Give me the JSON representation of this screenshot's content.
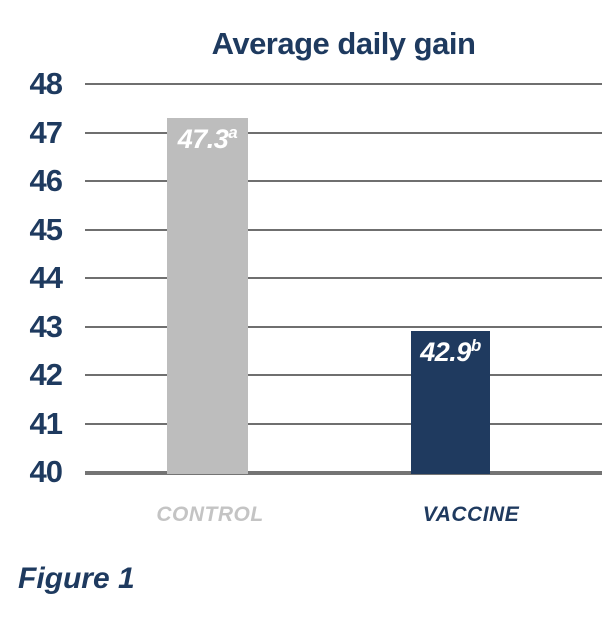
{
  "figure": {
    "label": "Figure 1"
  },
  "chart_data": {
    "type": "bar",
    "title": "Average daily gain",
    "categories": [
      "CONTROL",
      "VACCINE"
    ],
    "values": [
      47.3,
      42.9
    ],
    "value_labels": [
      "47.3",
      "42.9"
    ],
    "value_superscripts": [
      "a",
      "b"
    ],
    "ylim": [
      40,
      48
    ],
    "yticks": [
      40,
      41,
      42,
      43,
      44,
      45,
      46,
      47,
      48
    ],
    "grid": true,
    "legend": "none",
    "xlabel": "",
    "ylabel": "",
    "title_color": "#1e3a5f",
    "axis_label_color": "#1e3a5f",
    "bar_colors": [
      "#bdbdbd",
      "#1f3a5f"
    ],
    "category_label_colors": [
      "#c4c4c4",
      "#1f3a5f"
    ],
    "value_label_color": "#ffffff",
    "gridline_color": "#6f6f6f",
    "baseline_color": "#747474",
    "figure_label_color": "#1e3a5f"
  }
}
